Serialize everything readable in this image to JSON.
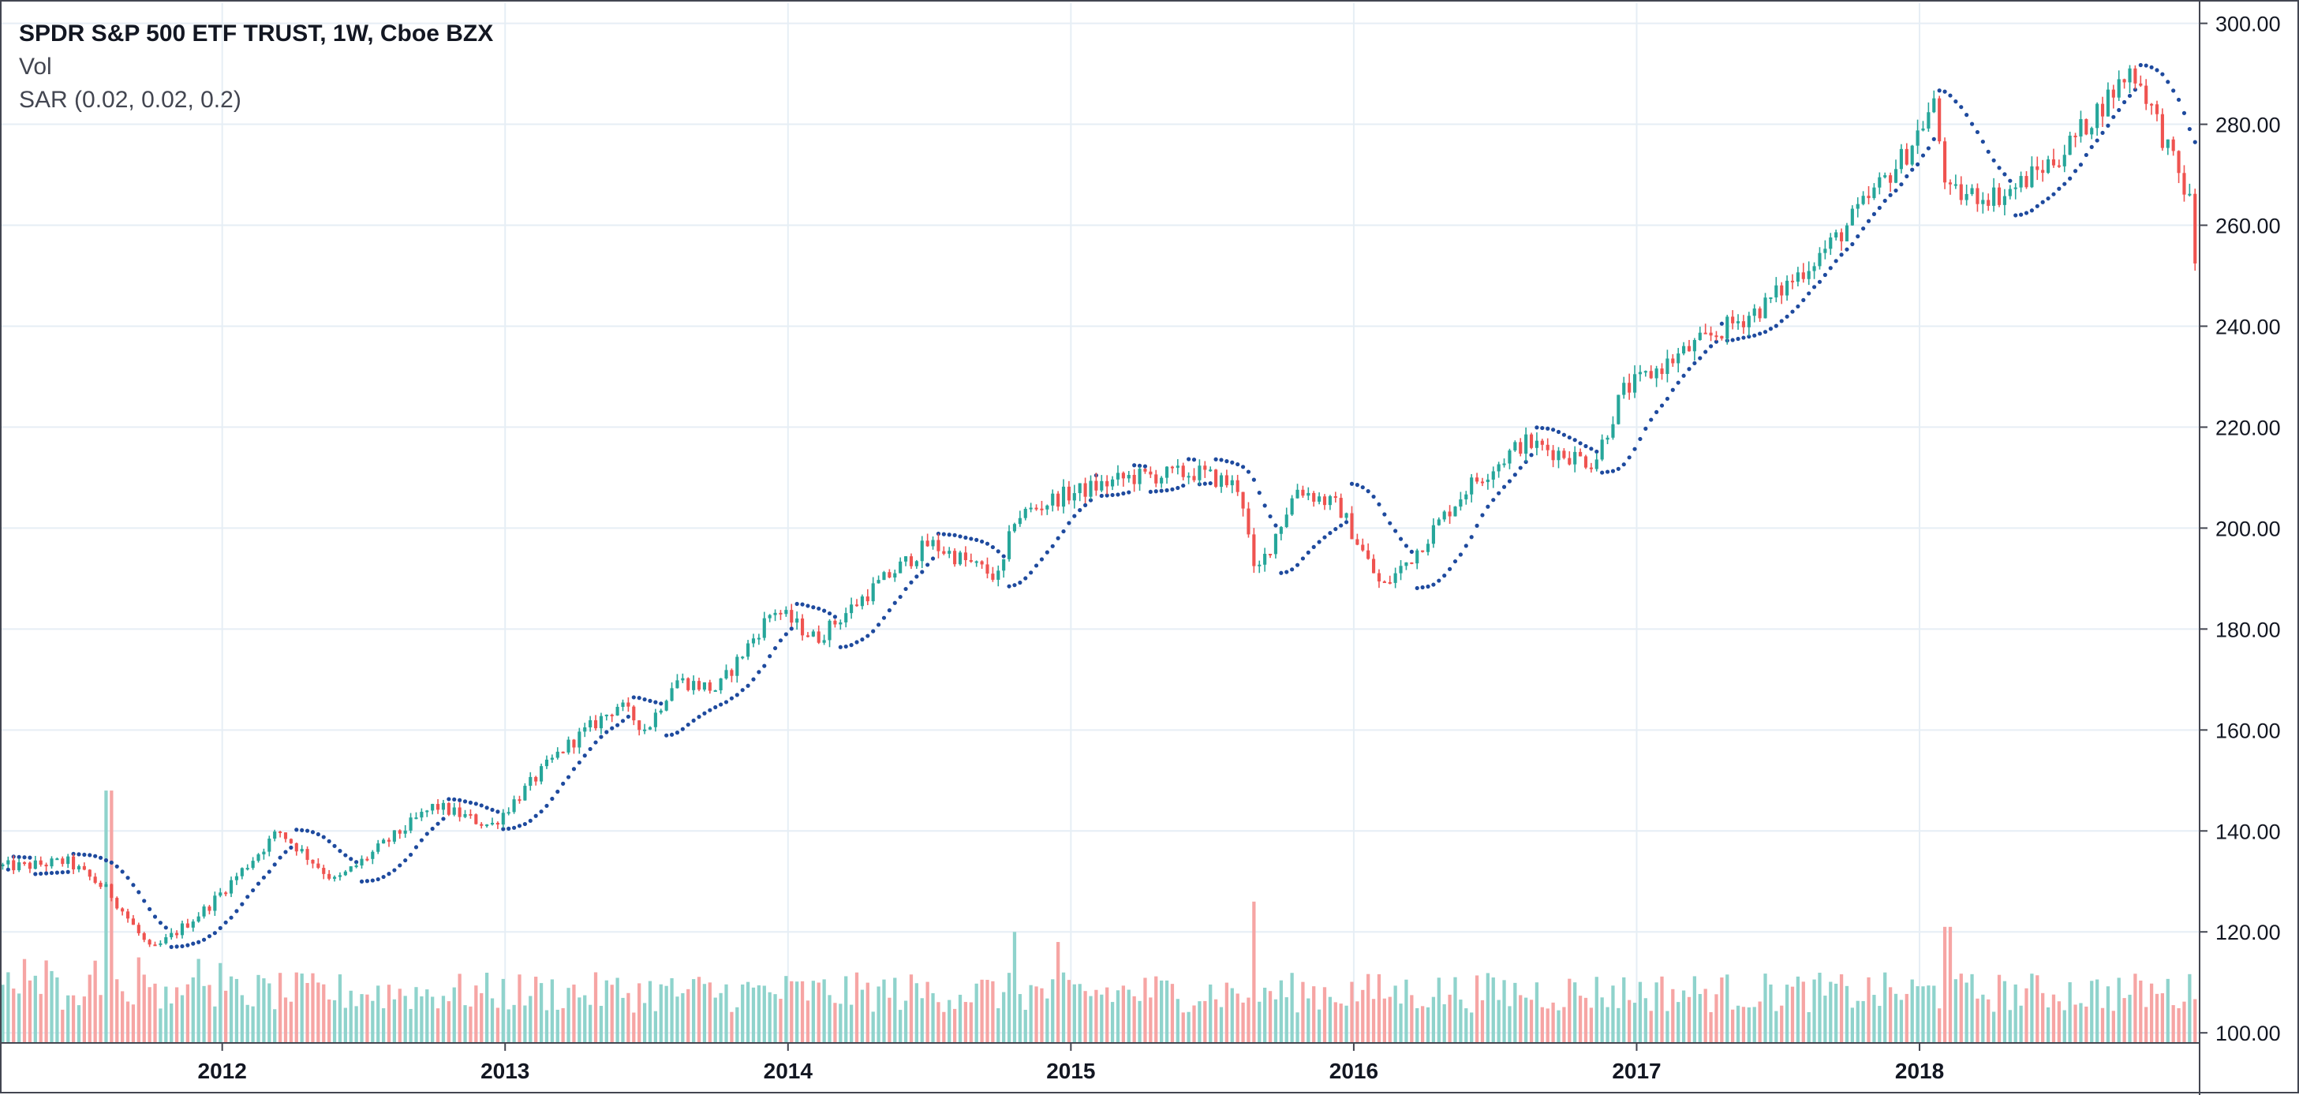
{
  "legend": {
    "symbol_title": "SPDR S&P 500 ETF TRUST, 1W, Cboe BZX",
    "volume_study": "Vol",
    "sar_study": "SAR (0.02, 0.02, 0.2)"
  },
  "colors": {
    "up": "#26a69a",
    "down": "#ef5350",
    "volume_up": "#8fd3cc",
    "volume_down": "#f6a5a4",
    "sar": "#1e4a9e",
    "grid": "#e6eef5",
    "axis_text": "#131722",
    "border": "#434651"
  },
  "chart_data": {
    "type": "candlestick",
    "title": "SPDR S&P 500 ETF TRUST, 1W, Cboe BZX",
    "x_axis": {
      "tick_labels": [
        "2012",
        "2013",
        "2014",
        "2015",
        "2016",
        "2017",
        "2018"
      ],
      "range": [
        "2011-04",
        "2018-12"
      ]
    },
    "y_axis": {
      "side": "right",
      "tick_labels": [
        "100.00",
        "120.00",
        "140.00",
        "160.00",
        "180.00",
        "200.00",
        "220.00",
        "240.00",
        "260.00",
        "280.00",
        "300.00"
      ],
      "range": [
        98,
        304
      ]
    },
    "grid": true,
    "series_close_anchors": {
      "year": [
        2011.3,
        2011.45,
        2011.6,
        2011.75,
        2011.95,
        2012.2,
        2012.4,
        2012.75,
        2012.95,
        2013.2,
        2013.4,
        2013.5,
        2013.6,
        2013.75,
        2013.95,
        2014.1,
        2014.3,
        2014.5,
        2014.75,
        2014.8,
        2014.95,
        2015.2,
        2015.45,
        2015.6,
        2015.65,
        2015.8,
        2015.95,
        2016.1,
        2016.2,
        2016.4,
        2016.6,
        2016.85,
        2016.95,
        2017.2,
        2017.45,
        2017.7,
        2017.95,
        2018.05,
        2018.1,
        2018.3,
        2018.5,
        2018.75,
        2018.8,
        2018.9,
        2018.96,
        2018.99
      ],
      "value": [
        133,
        134,
        128,
        116,
        125,
        140,
        130,
        145,
        141,
        156,
        165,
        160,
        170,
        168,
        184,
        178,
        188,
        197,
        190,
        202,
        206,
        210,
        211,
        208,
        190,
        208,
        204,
        188,
        194,
        208,
        217,
        213,
        227,
        236,
        244,
        257,
        274,
        284,
        266,
        266,
        274,
        291,
        286,
        272,
        264,
        240
      ]
    },
    "candles_weekly": "approx. 400 weekly OHLC candles (2011-04 to 2018-12) following the close anchors; up-candles green, down-candles red",
    "volume": {
      "series": "weekly volume bars in the bottom band, colored by candle direction",
      "notable_spikes": [
        {
          "date": "2011.6",
          "level": 148
        },
        {
          "date": "2014.8",
          "level": 120
        },
        {
          "date": "2014.95",
          "level": 118
        },
        {
          "date": "2015.65",
          "level": 126
        },
        {
          "date": "2018.1",
          "level": 121
        }
      ]
    },
    "sar_dots": "parabolic SAR dots (0.02, 0.02, 0.2) plotted below price in uptrends and above price in downtrends"
  }
}
